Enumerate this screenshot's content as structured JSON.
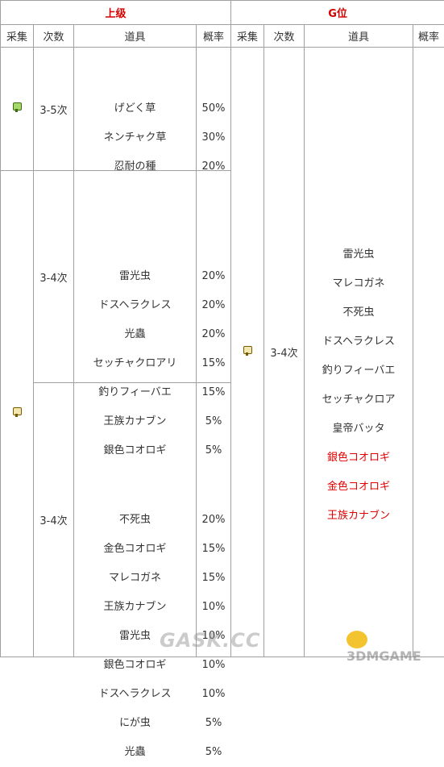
{
  "header": {
    "upper_label": "上级",
    "g_label": "G位",
    "cols": {
      "gather": "采集",
      "times": "次数",
      "item": "道具",
      "rate": "概率"
    }
  },
  "upper": {
    "block1": {
      "icon": "bug-net-icon",
      "times": "3-5次",
      "items": [
        "げどく草",
        "ネンチャク草",
        "忍耐の種"
      ],
      "rates": [
        "50%",
        "30%",
        "20%"
      ]
    },
    "block2": {
      "icon": "bug-net-icon",
      "times": "3-4次",
      "items": [
        "雷光虫",
        "ドスヘラクレス",
        "光蟲",
        "セッチャクロアリ",
        "釣りフィーバエ",
        "王族カナブン",
        "銀色コオロギ"
      ],
      "rates": [
        "20%",
        "20%",
        "20%",
        "15%",
        "15%",
        "5%",
        "5%"
      ]
    },
    "block3": {
      "times": "3-4次",
      "items": [
        "不死虫",
        "金色コオロギ",
        "マレコガネ",
        "王族カナブン",
        "雷光虫",
        "銀色コオロギ",
        "ドスヘラクレス",
        "にが虫",
        "光蟲"
      ],
      "rates": [
        "20%",
        "15%",
        "15%",
        "10%",
        "10%",
        "10%",
        "10%",
        "5%",
        "5%"
      ]
    }
  },
  "g": {
    "icon": "bug-net-icon",
    "times": "3-4次",
    "items": [
      "雷光虫",
      "マレコガネ",
      "不死虫",
      "ドスヘラクレス",
      "釣りフィーバエ",
      "セッチャクロア",
      "皇帝バッタ",
      "銀色コオロギ",
      "金色コオロギ",
      "王族カナブン"
    ],
    "red_from": 7
  },
  "watermarks": {
    "left": "GASK.CC",
    "right": "3DMGAME"
  }
}
